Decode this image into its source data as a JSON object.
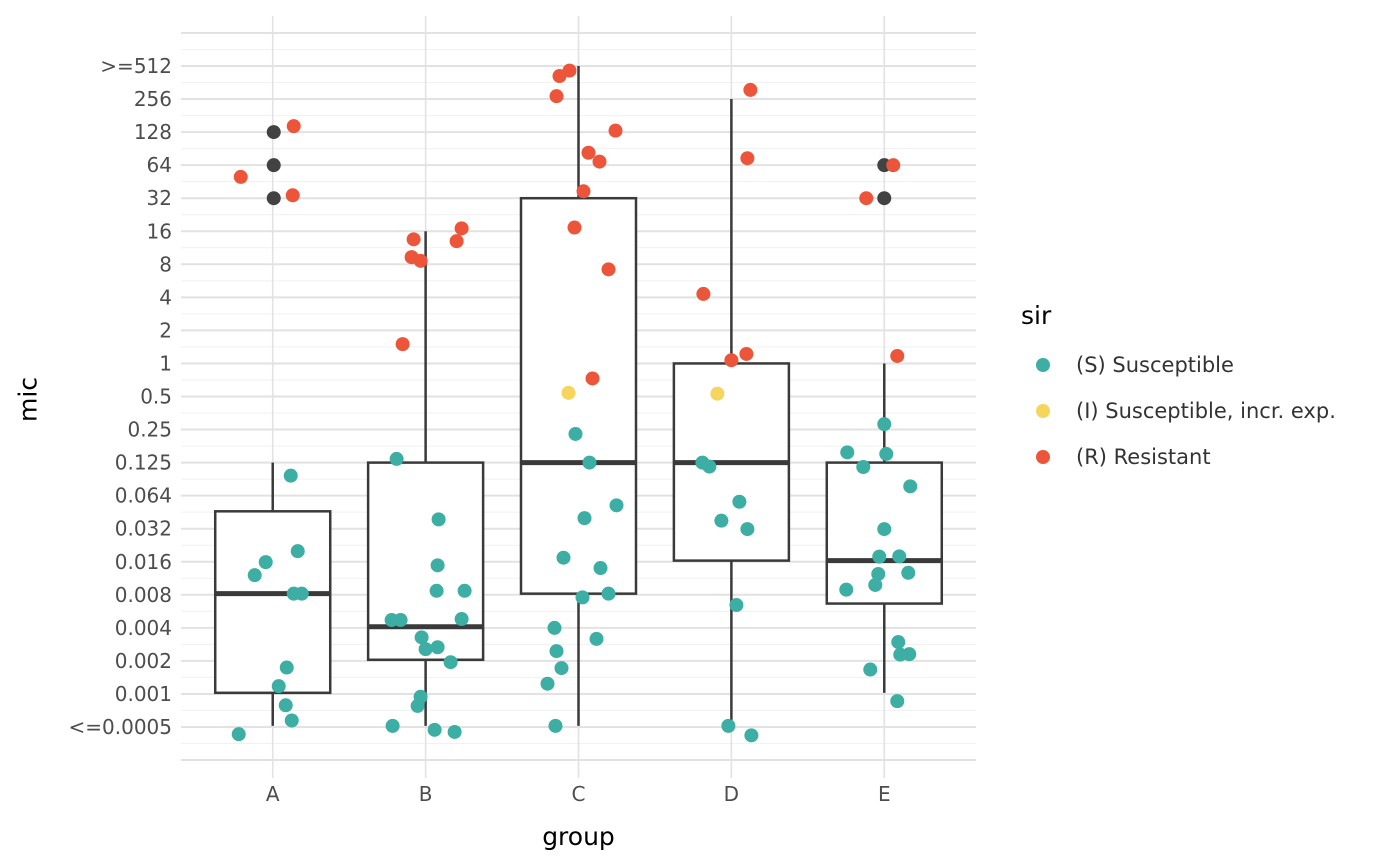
{
  "legend": {
    "title": "sir",
    "items": [
      {
        "sir": "S",
        "label": "(S) Susceptible"
      },
      {
        "sir": "I",
        "label": "(I) Susceptible, incr. exp."
      },
      {
        "sir": "R",
        "label": "(R) Resistant"
      }
    ]
  },
  "chart_data": {
    "type": "boxplot",
    "subtype": "boxplot-with-jittered-points",
    "xlabel": "group",
    "ylabel": "mic",
    "x_categories": [
      "A",
      "B",
      "C",
      "D",
      "E"
    ],
    "y_scale": "log2",
    "y_tick_labels": [
      ">=512",
      "256",
      "128",
      "64",
      "32",
      "16",
      "8",
      "4",
      "2",
      "1",
      "0.5",
      "0.25",
      "0.125",
      "0.064",
      "0.032",
      "0.016",
      "0.008",
      "0.004",
      "0.002",
      "0.001",
      "<=0.0005"
    ],
    "y_tick_values": [
      512,
      256,
      128,
      64,
      32,
      16,
      8,
      4,
      2,
      1,
      0.5,
      0.25,
      0.125,
      0.064,
      0.032,
      0.016,
      0.008,
      0.004,
      0.002,
      0.001,
      0.0005
    ],
    "grid": {
      "major": true,
      "minor": true,
      "vertical_at_categories": true
    },
    "legend_position": "right",
    "colors": {
      "S": "#3CAEA3",
      "I": "#F6D55C",
      "R": "#ED553B",
      "NA": "#424242",
      "box_stroke": "#3A3A3A",
      "grid_major": "#E2E2E2",
      "grid_minor": "#F1F1F1",
      "tick_text": "#4D4D4D",
      "title_text": "#000000"
    },
    "groups": [
      {
        "label": "A",
        "box": {
          "q1": 0.001,
          "median": 0.008,
          "q3": 0.045,
          "whisker_low": 0.0005,
          "whisker_high": 0.125
        },
        "points": {
          "S": [
            [
              0.095,
              18
            ],
            [
              0.0195,
              25
            ],
            [
              0.0155,
              -7
            ],
            [
              0.0118,
              -18
            ],
            [
              0.008,
              21
            ],
            [
              0.008,
              29
            ],
            [
              0.0017,
              14
            ],
            [
              0.00115,
              6
            ],
            [
              0.00077,
              13
            ],
            [
              0.00056,
              19
            ],
            [
              0.00042,
              -34
            ]
          ],
          "I": [],
          "NA": [
            [
              128,
              1
            ],
            [
              64,
              1
            ],
            [
              32,
              1
            ]
          ],
          "R": [
            [
              145,
              21
            ],
            [
              50,
              -32
            ],
            [
              34,
              20
            ]
          ]
        }
      },
      {
        "label": "B",
        "box": {
          "q1": 0.002,
          "median": 0.004,
          "q3": 0.125,
          "whisker_low": 0.0005,
          "whisker_high": 16
        },
        "points": {
          "S": [
            [
              0.135,
              -29
            ],
            [
              0.038,
              13
            ],
            [
              0.0145,
              12
            ],
            [
              0.0085,
              11
            ],
            [
              0.0085,
              39
            ],
            [
              0.0046,
              -34
            ],
            [
              0.0046,
              -25
            ],
            [
              0.0047,
              36
            ],
            [
              0.0032,
              -4
            ],
            [
              0.0025,
              0
            ],
            [
              0.0026,
              12
            ],
            [
              0.0019,
              25
            ],
            [
              0.00092,
              -5
            ],
            [
              0.00076,
              -8
            ],
            [
              0.0005,
              -33
            ],
            [
              0.00046,
              9
            ],
            [
              0.00044,
              29
            ]
          ],
          "I": [],
          "NA": [],
          "R": [
            [
              17,
              36
            ],
            [
              13.5,
              -12
            ],
            [
              13,
              31
            ],
            [
              9.3,
              -14
            ],
            [
              8.6,
              -5
            ],
            [
              1.5,
              -23
            ]
          ]
        }
      },
      {
        "label": "C",
        "box": {
          "q1": 0.008,
          "median": 0.125,
          "q3": 32,
          "whisker_low": 0.0005,
          "whisker_high": 512
        },
        "points": {
          "S": [
            [
              0.228,
              -3
            ],
            [
              0.125,
              11
            ],
            [
              0.051,
              38
            ],
            [
              0.039,
              6
            ],
            [
              0.017,
              -15
            ],
            [
              0.0137,
              22
            ],
            [
              0.008,
              30
            ],
            [
              0.0074,
              4
            ],
            [
              0.0039,
              -24
            ],
            [
              0.0031,
              18
            ],
            [
              0.0024,
              -22
            ],
            [
              0.00168,
              -17
            ],
            [
              0.00121,
              -31
            ],
            [
              0.0005,
              -23
            ]
          ],
          "I": [
            [
              0.54,
              -10
            ]
          ],
          "NA": [],
          "R": [
            [
              415,
              -19
            ],
            [
              465,
              -9
            ],
            [
              272,
              -22
            ],
            [
              132,
              37
            ],
            [
              83,
              10
            ],
            [
              69,
              21
            ],
            [
              37,
              5
            ],
            [
              17.3,
              -4
            ],
            [
              7.2,
              30
            ],
            [
              0.73,
              14
            ]
          ]
        }
      },
      {
        "label": "D",
        "box": {
          "q1": 0.016,
          "median": 0.125,
          "q3": 1,
          "whisker_low": 0.0005,
          "whisker_high": 256
        },
        "points": {
          "S": [
            [
              0.125,
              -29
            ],
            [
              0.115,
              -22
            ],
            [
              0.055,
              8
            ],
            [
              0.037,
              -10
            ],
            [
              0.031,
              16
            ],
            [
              0.0063,
              5
            ],
            [
              0.0005,
              -3
            ],
            [
              0.00041,
              20
            ]
          ],
          "I": [
            [
              0.53,
              -14
            ]
          ],
          "NA": [],
          "R": [
            [
              310,
              19
            ],
            [
              74,
              16
            ],
            [
              4.3,
              -28
            ],
            [
              1.22,
              15
            ],
            [
              1.07,
              0
            ]
          ]
        }
      },
      {
        "label": "E",
        "box": {
          "q1": 0.0065,
          "median": 0.016,
          "q3": 0.125,
          "whisker_low": 0.001,
          "whisker_high": 1
        },
        "points": {
          "S": [
            [
              0.28,
              0
            ],
            [
              0.155,
              -37
            ],
            [
              0.15,
              2
            ],
            [
              0.114,
              -21
            ],
            [
              0.076,
              26
            ],
            [
              0.031,
              0
            ],
            [
              0.0174,
              -5
            ],
            [
              0.0175,
              15
            ],
            [
              0.0124,
              24
            ],
            [
              0.0121,
              -6
            ],
            [
              0.0096,
              -9
            ],
            [
              0.0087,
              -38
            ],
            [
              0.0029,
              14
            ],
            [
              0.00223,
              16
            ],
            [
              0.00225,
              25
            ],
            [
              0.00163,
              -14
            ],
            [
              0.00084,
              13
            ]
          ],
          "I": [],
          "NA": [
            [
              64,
              0
            ],
            [
              32,
              0
            ]
          ],
          "R": [
            [
              64,
              9
            ],
            [
              32,
              -18
            ],
            [
              1.17,
              13
            ]
          ]
        }
      }
    ]
  }
}
